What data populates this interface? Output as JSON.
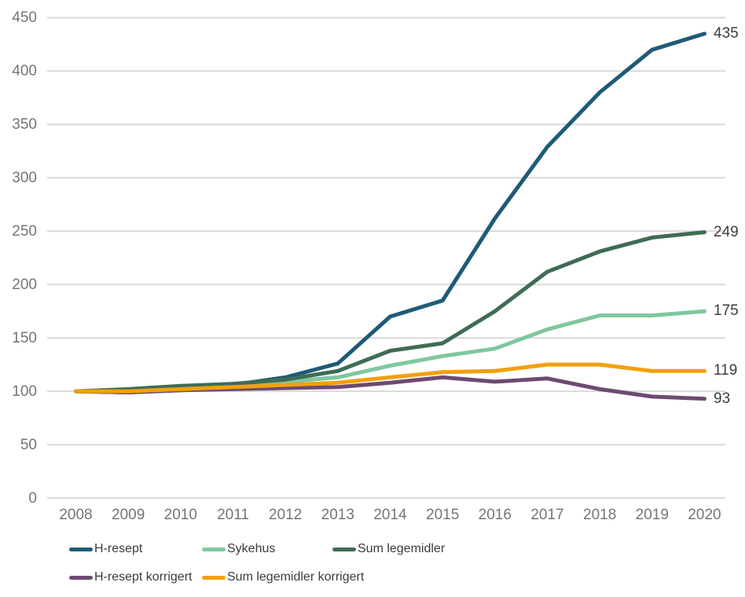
{
  "chart_data": {
    "type": "line",
    "title": "",
    "xlabel": "",
    "ylabel": "",
    "x": [
      2008,
      2009,
      2010,
      2011,
      2012,
      2013,
      2014,
      2015,
      2016,
      2017,
      2018,
      2019,
      2020
    ],
    "xticks": [
      "2008",
      "2009",
      "2010",
      "2011",
      "2012",
      "2013",
      "2014",
      "2015",
      "2016",
      "2017",
      "2018",
      "2019",
      "2020"
    ],
    "yticks": [
      "450",
      "400",
      "350",
      "300",
      "250",
      "200",
      "150",
      "100",
      "50",
      "0"
    ],
    "ylim": [
      0,
      450
    ],
    "ytick_step": 50,
    "grid": "horizontal",
    "legend_position": "bottom",
    "series": [
      {
        "name": "H-resept",
        "color": "#1e5b77",
        "values": [
          100,
          99,
          101,
          106,
          113,
          126,
          170,
          185,
          262,
          329,
          380,
          420,
          435
        ],
        "end_label": "435"
      },
      {
        "name": "Sykehus",
        "color": "#7fc79e",
        "values": [
          100,
          101,
          104,
          105,
          109,
          113,
          124,
          133,
          140,
          158,
          171,
          171,
          175
        ],
        "end_label": "175"
      },
      {
        "name": "Sum legemidler",
        "color": "#3e6c55",
        "values": [
          100,
          102,
          105,
          107,
          111,
          119,
          138,
          145,
          175,
          212,
          231,
          244,
          249
        ],
        "end_label": "249"
      },
      {
        "name": "H-resept korrigert",
        "color": "#6e4a72",
        "values": [
          100,
          99,
          101,
          102,
          103,
          104,
          108,
          113,
          109,
          112,
          102,
          95,
          93
        ],
        "end_label": "93"
      },
      {
        "name": "Sum legemidler korrigert",
        "color": "#f2a00d",
        "values": [
          100,
          100,
          102,
          104,
          106,
          108,
          113,
          118,
          119,
          125,
          125,
          119,
          119
        ],
        "end_label": "119"
      }
    ],
    "colors": {
      "grid": "#d9d9d9",
      "axis_text": "#757575",
      "end_label_text": "#3d3d3d",
      "legend_text": "#3b3b3b",
      "background": "#ffffff"
    }
  }
}
